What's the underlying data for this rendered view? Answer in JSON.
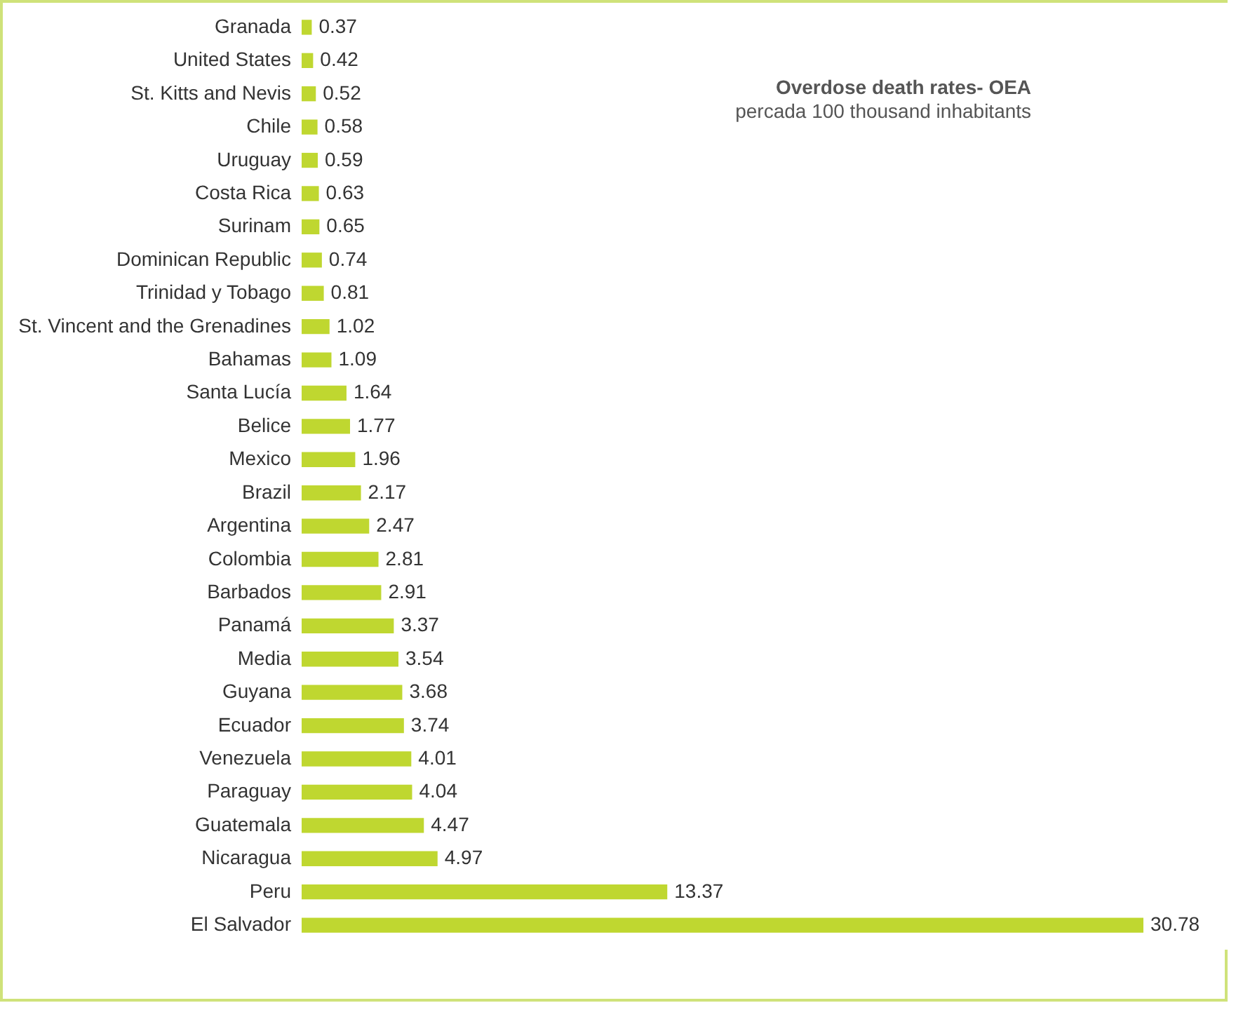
{
  "chart_data": {
    "type": "bar",
    "orientation": "horizontal",
    "title": "Overdose death rates- OEA",
    "subtitle": "percada 100 thousand inhabitants",
    "categories": [
      "Granada",
      "United States",
      "St. Kitts and Nevis",
      "Chile",
      "Uruguay",
      "Costa Rica",
      "Surinam",
      "Dominican Republic",
      "Trinidad y Tobago",
      "St. Vincent and the Grenadines",
      "Bahamas",
      "Santa Lucía",
      "Belice",
      "Mexico",
      "Brazil",
      "Argentina",
      "Colombia",
      "Barbados",
      "Panamá",
      "Media",
      "Guyana",
      "Ecuador",
      "Venezuela",
      "Paraguay",
      "Guatemala",
      "Nicaragua",
      "Peru",
      "El Salvador"
    ],
    "values": [
      0.37,
      0.42,
      0.52,
      0.58,
      0.59,
      0.63,
      0.65,
      0.74,
      0.81,
      1.02,
      1.09,
      1.64,
      1.77,
      1.96,
      2.17,
      2.47,
      2.81,
      2.91,
      3.37,
      3.54,
      3.68,
      3.74,
      4.01,
      4.04,
      4.47,
      4.97,
      13.37,
      30.78
    ],
    "color": "#bfd730",
    "data_labels": true,
    "tick_labels": "y"
  }
}
